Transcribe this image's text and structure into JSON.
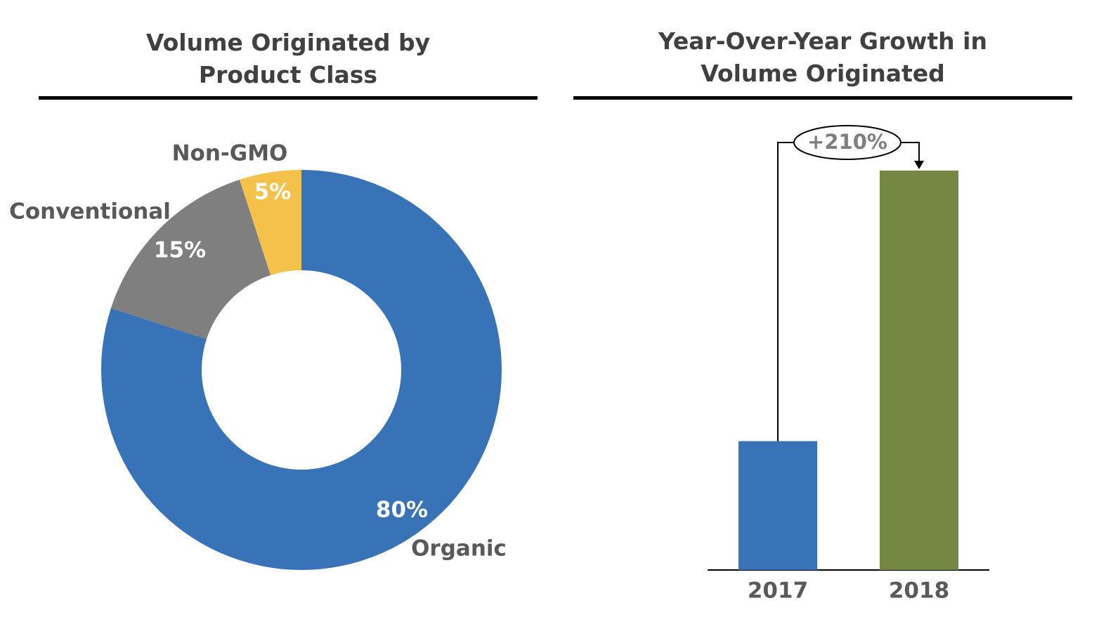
{
  "chart_data": [
    {
      "type": "pie",
      "title": "Volume Originated by Product Class",
      "categories": [
        "Organic",
        "Conventional",
        "Non-GMO"
      ],
      "values": [
        80,
        15,
        5
      ],
      "data_labels": [
        "80%",
        "15%",
        "5%"
      ],
      "colors": [
        "#3773b6",
        "#7f7f7f",
        "#f4c14a"
      ]
    },
    {
      "type": "bar",
      "title": "Year-Over-Year Growth in Volume Originated",
      "categories": [
        "2017",
        "2018"
      ],
      "values": [
        1,
        3.1
      ],
      "colors": [
        "#3773b6",
        "#748743"
      ],
      "annotation": "+210%"
    }
  ]
}
